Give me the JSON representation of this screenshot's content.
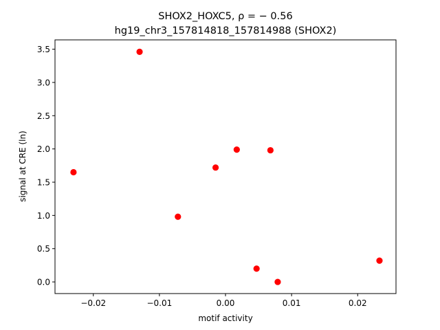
{
  "chart_data": {
    "type": "scatter",
    "title_line1": "SHOX2_HOXC5, ρ = − 0.56",
    "title_line2": "hg19_chr3_157814818_157814988 (SHOX2)",
    "xlabel": "motif activity",
    "ylabel": "signal at CRE (ln)",
    "xlim": [
      -0.0258,
      0.0258
    ],
    "ylim": [
      -0.175,
      3.64
    ],
    "x_ticks": [
      -0.02,
      -0.01,
      0.0,
      0.01,
      0.02
    ],
    "x_tick_labels": [
      "−0.02",
      "−0.01",
      "0.00",
      "0.01",
      "0.02"
    ],
    "y_ticks": [
      0.0,
      0.5,
      1.0,
      1.5,
      2.0,
      2.5,
      3.0,
      3.5
    ],
    "y_tick_labels": [
      "0.0",
      "0.5",
      "1.0",
      "1.5",
      "2.0",
      "2.5",
      "3.0",
      "3.5"
    ],
    "grid": false,
    "marker_color": "#ff0000",
    "points": [
      {
        "x": -0.023,
        "y": 1.65
      },
      {
        "x": -0.013,
        "y": 3.46
      },
      {
        "x": -0.0072,
        "y": 0.98
      },
      {
        "x": -0.0015,
        "y": 1.72
      },
      {
        "x": 0.0017,
        "y": 1.99
      },
      {
        "x": 0.0047,
        "y": 0.2
      },
      {
        "x": 0.0068,
        "y": 1.98
      },
      {
        "x": 0.0079,
        "y": 0.0
      },
      {
        "x": 0.0233,
        "y": 0.32
      }
    ]
  }
}
